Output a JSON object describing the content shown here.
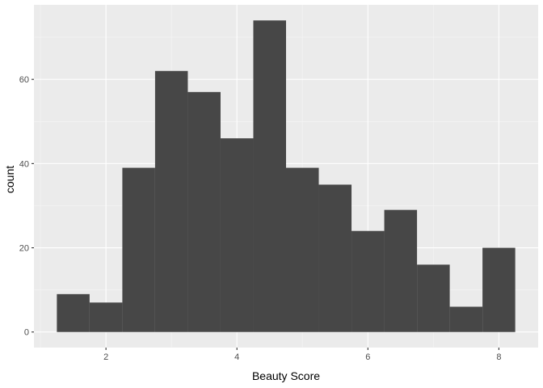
{
  "chart_data": {
    "type": "bar",
    "subtype": "histogram",
    "title": "",
    "xlabel": "Beauty Score",
    "ylabel": "count",
    "bins": [
      {
        "x0": 1.25,
        "x1": 1.75,
        "count": 9
      },
      {
        "x0": 1.75,
        "x1": 2.25,
        "count": 7
      },
      {
        "x0": 2.25,
        "x1": 2.75,
        "count": 39
      },
      {
        "x0": 2.75,
        "x1": 3.25,
        "count": 62
      },
      {
        "x0": 3.25,
        "x1": 3.75,
        "count": 57
      },
      {
        "x0": 3.75,
        "x1": 4.25,
        "count": 46
      },
      {
        "x0": 4.25,
        "x1": 4.75,
        "count": 74
      },
      {
        "x0": 4.75,
        "x1": 5.25,
        "count": 39
      },
      {
        "x0": 5.25,
        "x1": 5.75,
        "count": 35
      },
      {
        "x0": 5.75,
        "x1": 6.25,
        "count": 24
      },
      {
        "x0": 6.25,
        "x1": 6.75,
        "count": 29
      },
      {
        "x0": 6.75,
        "x1": 7.25,
        "count": 16
      },
      {
        "x0": 7.25,
        "x1": 7.75,
        "count": 6
      },
      {
        "x0": 7.75,
        "x1": 8.25,
        "count": 20
      }
    ],
    "xlim": [
      0.9,
      8.6
    ],
    "ylim": [
      -3.7,
      77.7
    ],
    "xticks": [
      2,
      4,
      6,
      8
    ],
    "yticks": [
      0,
      20,
      40,
      60
    ],
    "grid": true,
    "colors": {
      "bar": "#474747",
      "panel": "#ebebeb",
      "grid_major": "#ffffff",
      "grid_minor": "#f5f5f5"
    }
  }
}
